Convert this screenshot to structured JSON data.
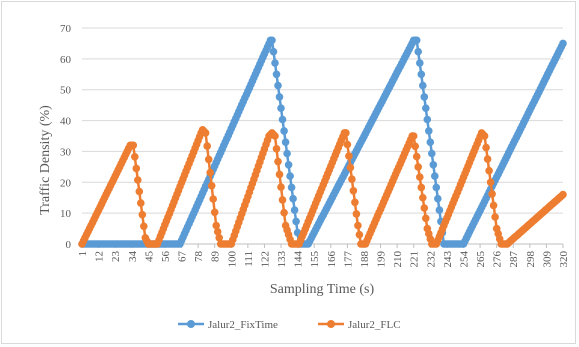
{
  "chart_data": {
    "type": "line",
    "title": "",
    "xlabel": "Sampling Time (s)",
    "ylabel": "Traffic Density (%)",
    "ylim": [
      0,
      70
    ],
    "yticks": [
      0,
      10,
      20,
      30,
      40,
      50,
      60,
      70
    ],
    "xlim": [
      1,
      320
    ],
    "xticks": [
      1,
      12,
      23,
      34,
      45,
      56,
      67,
      78,
      89,
      100,
      111,
      122,
      133,
      144,
      155,
      166,
      177,
      188,
      199,
      210,
      221,
      232,
      243,
      254,
      265,
      276,
      287,
      298,
      309,
      320
    ],
    "grid": "horizontal",
    "legend": "bottom",
    "markers": "circle",
    "series": [
      {
        "name": "Jalur2_FixTime",
        "color": "#5b9bd5",
        "points": [
          [
            1,
            0
          ],
          [
            54,
            0
          ],
          [
            61,
            0
          ],
          [
            66,
            0
          ],
          [
            126,
            66
          ],
          [
            127,
            66
          ],
          [
            145,
            0
          ],
          [
            151,
            0
          ],
          [
            221,
            66
          ],
          [
            223,
            66
          ],
          [
            241,
            0
          ],
          [
            254,
            0
          ],
          [
            320,
            65
          ]
        ]
      },
      {
        "name": "Jalur2_FLC",
        "color": "#ed7d31",
        "points": [
          [
            1,
            0
          ],
          [
            33,
            32
          ],
          [
            35,
            32
          ],
          [
            43,
            2
          ],
          [
            45,
            0
          ],
          [
            51,
            0
          ],
          [
            80,
            36
          ],
          [
            81,
            37
          ],
          [
            83,
            36
          ],
          [
            90,
            6
          ],
          [
            93,
            0
          ],
          [
            100,
            0
          ],
          [
            125,
            35
          ],
          [
            127,
            36
          ],
          [
            129,
            35
          ],
          [
            136,
            6
          ],
          [
            140,
            0
          ],
          [
            145,
            0
          ],
          [
            175,
            36
          ],
          [
            176,
            36
          ],
          [
            184,
            6
          ],
          [
            186,
            0
          ],
          [
            189,
            0
          ],
          [
            220,
            35
          ],
          [
            221,
            35
          ],
          [
            230,
            5
          ],
          [
            233,
            0
          ],
          [
            236,
            0
          ],
          [
            266,
            36
          ],
          [
            268,
            35
          ],
          [
            276,
            5
          ],
          [
            279,
            0
          ],
          [
            283,
            0
          ],
          [
            320,
            16
          ]
        ]
      }
    ]
  }
}
